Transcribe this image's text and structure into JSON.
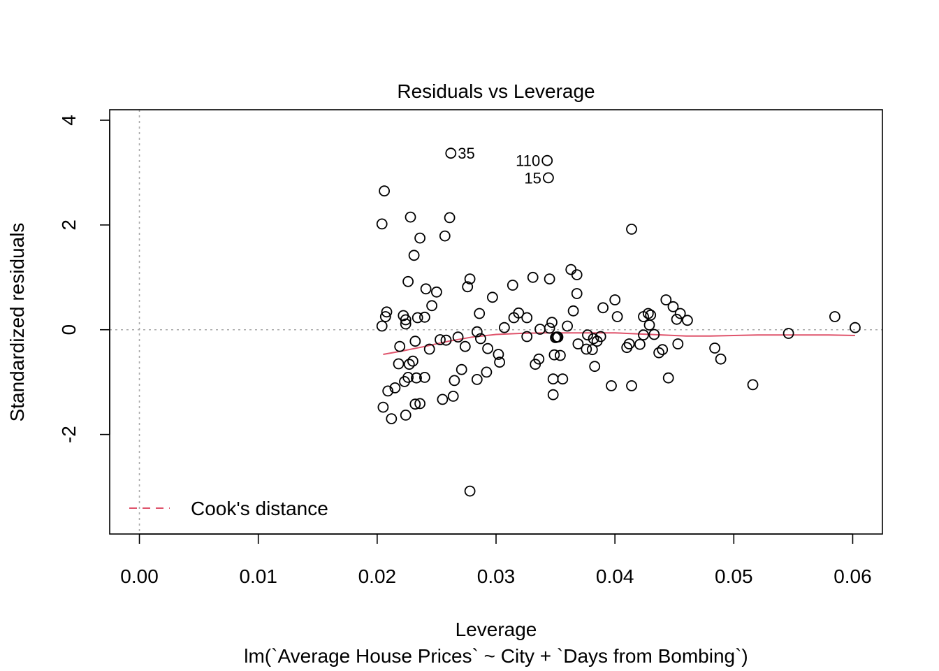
{
  "chart_data": {
    "type": "scatter",
    "title": "Residuals vs Leverage",
    "xlabel": "Leverage",
    "subtitle": "lm(`Average House Prices` ~ City + `Days from Bombing`)",
    "ylabel": "Standardized residuals",
    "xlim": [
      -0.0025,
      0.0625
    ],
    "ylim": [
      -3.9,
      4.2
    ],
    "x_ticks": [
      0.0,
      0.01,
      0.02,
      0.03,
      0.04,
      0.05,
      0.06
    ],
    "x_tick_labels": [
      "0.00",
      "0.01",
      "0.02",
      "0.03",
      "0.04",
      "0.05",
      "0.06"
    ],
    "y_ticks": [
      -2,
      0,
      2,
      4
    ],
    "y_tick_labels": [
      "-2",
      "0",
      "2",
      "4"
    ],
    "grid": false,
    "reference_lines": {
      "h": 0,
      "v": 0,
      "style": "dotted",
      "color": "#aaaaaa"
    },
    "legend": {
      "placement": "bottom-left",
      "entries": [
        {
          "label": "Cook's distance",
          "color": "#DF536B",
          "style": "dashed"
        }
      ]
    },
    "smoother": {
      "color": "#DF536B",
      "points": [
        [
          0.0205,
          -0.47
        ],
        [
          0.022,
          -0.41
        ],
        [
          0.024,
          -0.32
        ],
        [
          0.026,
          -0.22
        ],
        [
          0.028,
          -0.14
        ],
        [
          0.03,
          -0.09
        ],
        [
          0.032,
          -0.07
        ],
        [
          0.034,
          -0.06
        ],
        [
          0.036,
          -0.06
        ],
        [
          0.038,
          -0.06
        ],
        [
          0.04,
          -0.06
        ],
        [
          0.042,
          -0.08
        ],
        [
          0.044,
          -0.1
        ],
        [
          0.046,
          -0.12
        ],
        [
          0.048,
          -0.12
        ],
        [
          0.05,
          -0.11
        ],
        [
          0.052,
          -0.1
        ],
        [
          0.055,
          -0.1
        ],
        [
          0.058,
          -0.1
        ],
        [
          0.0602,
          -0.11
        ]
      ]
    },
    "labeled_points": [
      {
        "label": "35",
        "x": 0.0262,
        "y": 3.37,
        "side": "right"
      },
      {
        "label": "110",
        "x": 0.0343,
        "y": 3.23,
        "side": "left"
      },
      {
        "label": "15",
        "x": 0.0344,
        "y": 2.9,
        "side": "left"
      }
    ],
    "points": [
      [
        0.0206,
        2.65
      ],
      [
        0.0204,
        2.02
      ],
      [
        0.0228,
        2.15
      ],
      [
        0.0261,
        2.14
      ],
      [
        0.0236,
        1.75
      ],
      [
        0.0257,
        1.79
      ],
      [
        0.0231,
        1.42
      ],
      [
        0.0414,
        1.92
      ],
      [
        0.0278,
        0.97
      ],
      [
        0.0276,
        0.82
      ],
      [
        0.0226,
        0.92
      ],
      [
        0.0241,
        0.78
      ],
      [
        0.025,
        0.72
      ],
      [
        0.0314,
        0.85
      ],
      [
        0.0331,
        1.0
      ],
      [
        0.0345,
        0.97
      ],
      [
        0.0363,
        1.15
      ],
      [
        0.0368,
        1.05
      ],
      [
        0.0368,
        0.69
      ],
      [
        0.0297,
        0.62
      ],
      [
        0.0246,
        0.46
      ],
      [
        0.04,
        0.57
      ],
      [
        0.0443,
        0.57
      ],
      [
        0.0449,
        0.44
      ],
      [
        0.039,
        0.42
      ],
      [
        0.0208,
        0.34
      ],
      [
        0.0286,
        0.31
      ],
      [
        0.0319,
        0.32
      ],
      [
        0.0365,
        0.36
      ],
      [
        0.0402,
        0.25
      ],
      [
        0.0428,
        0.31
      ],
      [
        0.043,
        0.28
      ],
      [
        0.0424,
        0.25
      ],
      [
        0.0455,
        0.31
      ],
      [
        0.0452,
        0.2
      ],
      [
        0.0461,
        0.18
      ],
      [
        0.0207,
        0.25
      ],
      [
        0.0222,
        0.27
      ],
      [
        0.0224,
        0.19
      ],
      [
        0.0234,
        0.23
      ],
      [
        0.024,
        0.24
      ],
      [
        0.0224,
        0.11
      ],
      [
        0.0315,
        0.23
      ],
      [
        0.0326,
        0.23
      ],
      [
        0.0204,
        0.07
      ],
      [
        0.0347,
        0.14
      ],
      [
        0.036,
        0.07
      ],
      [
        0.0307,
        0.04
      ],
      [
        0.0337,
        0.01
      ],
      [
        0.0345,
        0.03
      ],
      [
        0.0429,
        0.09
      ],
      [
        0.0585,
        0.25
      ],
      [
        0.0602,
        0.04
      ],
      [
        0.0546,
        -0.07
      ],
      [
        0.0284,
        -0.04
      ],
      [
        0.0268,
        -0.14
      ],
      [
        0.0326,
        -0.13
      ],
      [
        0.0351,
        -0.14
      ],
      [
        0.0352,
        -0.14
      ],
      [
        0.035,
        -0.15
      ],
      [
        0.0377,
        -0.1
      ],
      [
        0.0388,
        -0.13
      ],
      [
        0.0382,
        -0.17
      ],
      [
        0.0385,
        -0.22
      ],
      [
        0.0424,
        -0.1
      ],
      [
        0.0433,
        -0.09
      ],
      [
        0.0412,
        -0.27
      ],
      [
        0.0421,
        -0.28
      ],
      [
        0.041,
        -0.34
      ],
      [
        0.0453,
        -0.27
      ],
      [
        0.0369,
        -0.27
      ],
      [
        0.0376,
        -0.37
      ],
      [
        0.0381,
        -0.38
      ],
      [
        0.0437,
        -0.44
      ],
      [
        0.044,
        -0.38
      ],
      [
        0.0484,
        -0.35
      ],
      [
        0.0489,
        -0.56
      ],
      [
        0.0232,
        -0.22
      ],
      [
        0.0219,
        -0.32
      ],
      [
        0.0244,
        -0.37
      ],
      [
        0.0253,
        -0.19
      ],
      [
        0.0258,
        -0.2
      ],
      [
        0.0274,
        -0.32
      ],
      [
        0.0287,
        -0.17
      ],
      [
        0.0293,
        -0.36
      ],
      [
        0.0302,
        -0.47
      ],
      [
        0.0303,
        -0.62
      ],
      [
        0.0349,
        -0.48
      ],
      [
        0.0354,
        -0.49
      ],
      [
        0.0336,
        -0.56
      ],
      [
        0.0333,
        -0.66
      ],
      [
        0.0383,
        -0.7
      ],
      [
        0.0218,
        -0.65
      ],
      [
        0.0227,
        -0.66
      ],
      [
        0.023,
        -0.6
      ],
      [
        0.0271,
        -0.76
      ],
      [
        0.0292,
        -0.81
      ],
      [
        0.0233,
        -0.92
      ],
      [
        0.024,
        -0.91
      ],
      [
        0.0226,
        -0.91
      ],
      [
        0.0223,
        -0.99
      ],
      [
        0.0265,
        -0.97
      ],
      [
        0.0284,
        -0.95
      ],
      [
        0.0348,
        -0.94
      ],
      [
        0.0356,
        -0.94
      ],
      [
        0.0445,
        -0.92
      ],
      [
        0.0215,
        -1.11
      ],
      [
        0.0209,
        -1.17
      ],
      [
        0.0397,
        -1.07
      ],
      [
        0.0414,
        -1.07
      ],
      [
        0.0516,
        -1.05
      ],
      [
        0.0348,
        -1.24
      ],
      [
        0.0264,
        -1.27
      ],
      [
        0.0255,
        -1.33
      ],
      [
        0.0232,
        -1.42
      ],
      [
        0.0236,
        -1.41
      ],
      [
        0.0205,
        -1.48
      ],
      [
        0.0224,
        -1.63
      ],
      [
        0.0212,
        -1.7
      ],
      [
        0.0278,
        -3.08
      ]
    ]
  }
}
